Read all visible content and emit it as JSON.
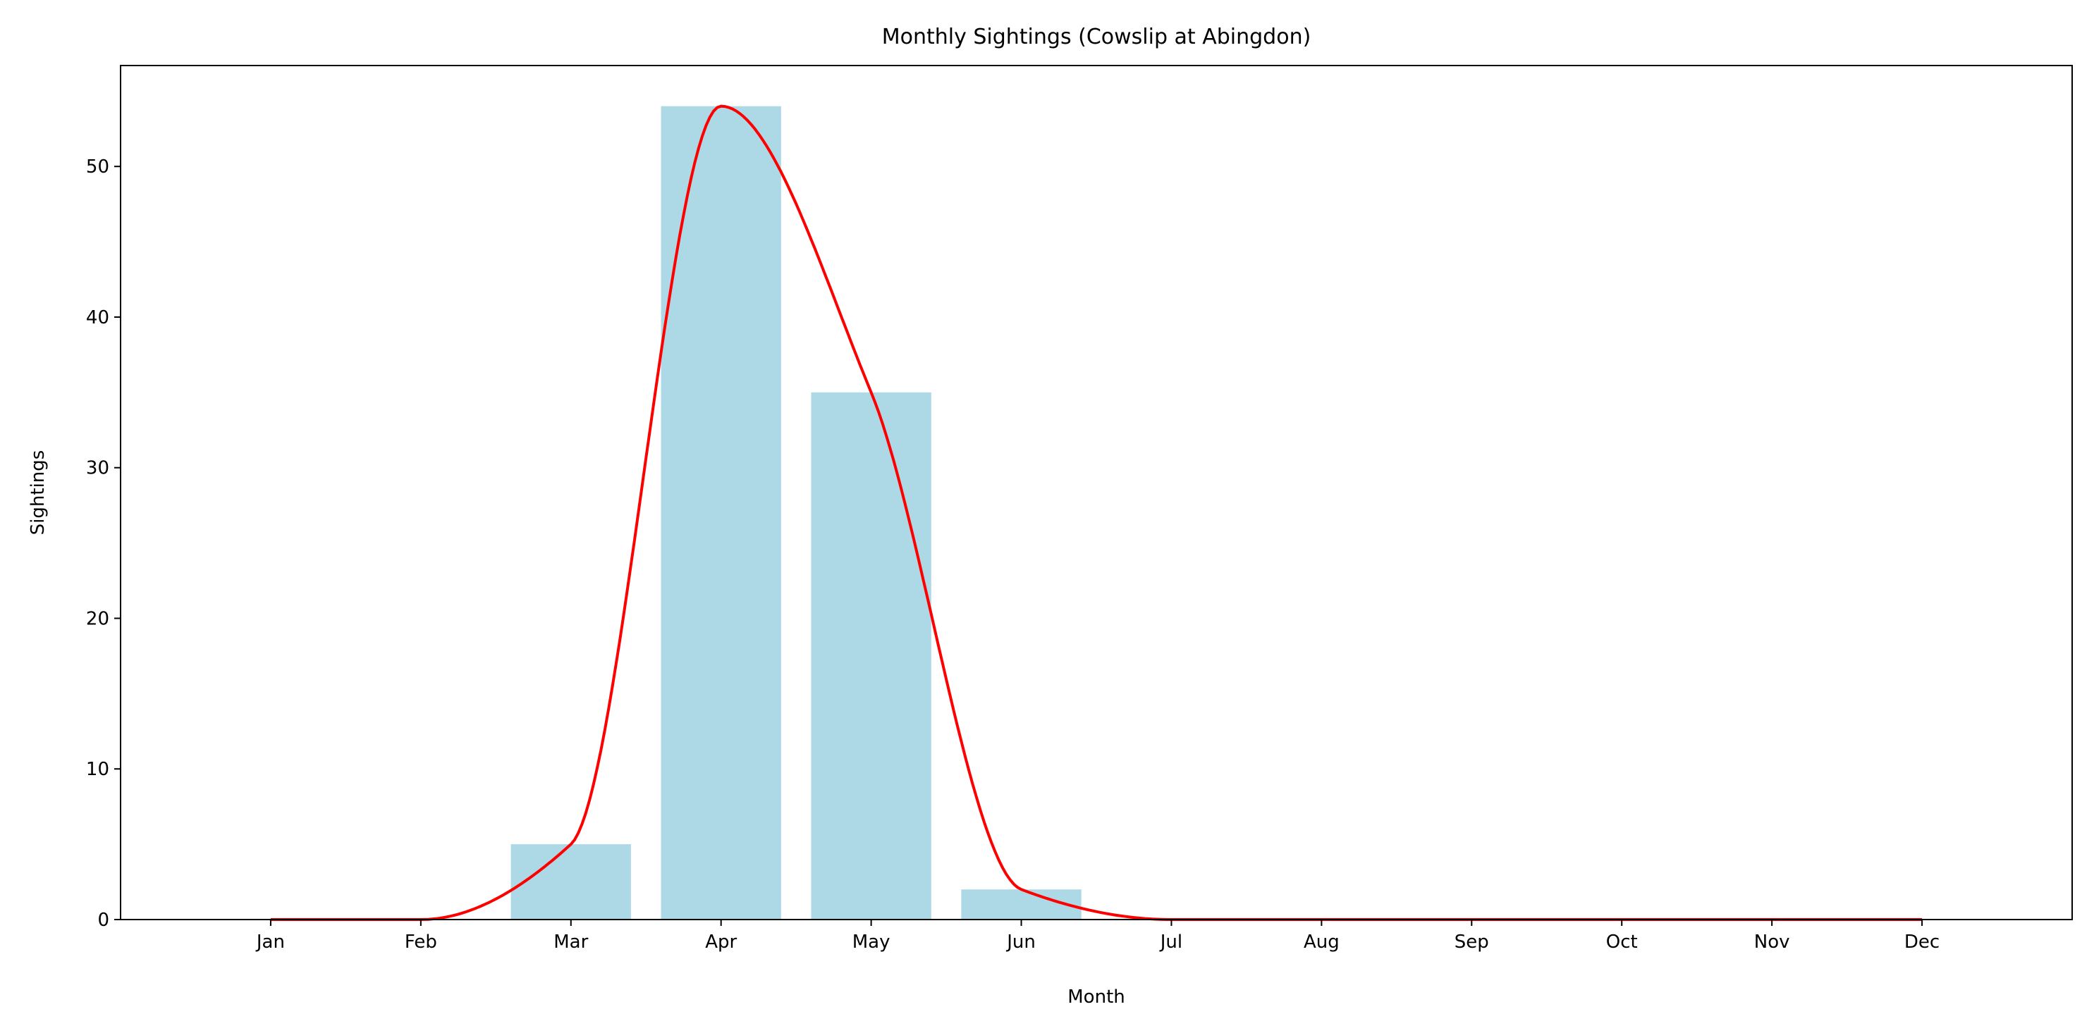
{
  "chart_data": {
    "type": "bar",
    "title": "Monthly Sightings (Cowslip at Abingdon)",
    "xlabel": "Month",
    "ylabel": "Sightings",
    "categories": [
      "Jan",
      "Feb",
      "Mar",
      "Apr",
      "May",
      "Jun",
      "Jul",
      "Aug",
      "Sep",
      "Oct",
      "Nov",
      "Dec"
    ],
    "values": [
      0,
      0,
      5,
      54,
      35,
      2,
      0,
      0,
      0,
      0,
      0,
      0
    ],
    "overlay_line": {
      "type": "line",
      "interpolation": "smooth",
      "values": [
        0,
        0,
        5,
        54,
        35,
        2,
        0,
        0,
        0,
        0,
        0,
        0
      ]
    },
    "ylim": [
      0,
      56.7
    ],
    "xlim": [
      -1,
      12
    ],
    "yticks": [
      0,
      10,
      20,
      30,
      40,
      50
    ],
    "grid": false,
    "colors": {
      "bar": "#add8e6",
      "line": "#ff0000"
    }
  }
}
